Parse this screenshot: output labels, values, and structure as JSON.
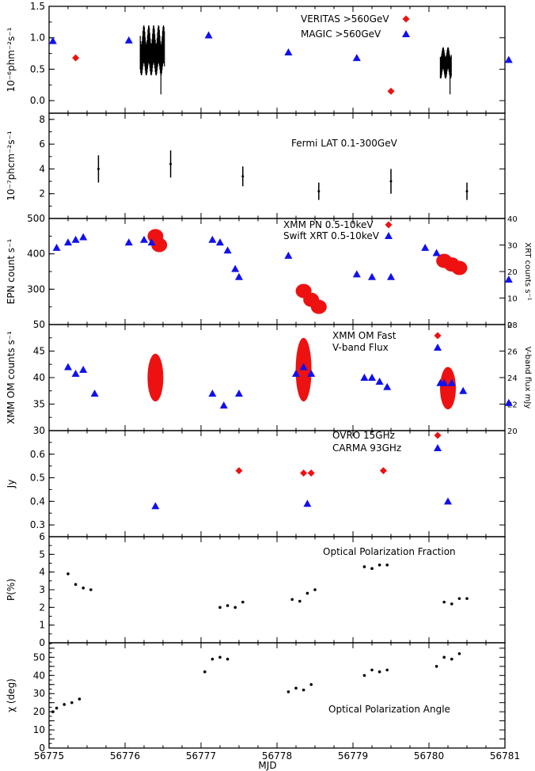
{
  "chart_data": [
    {
      "type": "scatter",
      "ylabel": "10⁻⁶phm⁻²s⁻¹",
      "ylim": [
        -0.2,
        1.5
      ],
      "yticks": [
        0.0,
        0.5,
        1.0,
        1.5
      ],
      "ytick_labels": [
        "0.0",
        "0.5",
        "1.0",
        "1.5"
      ],
      "series": [
        {
          "name": "VERITAS >560GeV",
          "color": "#ee1111",
          "marker": "diamond",
          "x": [
            56775.35,
            56776.35,
            56776.45,
            56779.5,
            56780.25
          ],
          "y": [
            0.68,
            0.72,
            0.73,
            0.15,
            0.57
          ]
        },
        {
          "name": "MAGIC >560GeV",
          "color": "#1111ee",
          "marker": "triangle",
          "x": [
            56775.05,
            56776.05,
            56777.1,
            56778.15,
            56779.05,
            56781.05
          ],
          "y": [
            0.95,
            0.96,
            1.04,
            0.77,
            0.68,
            0.65
          ]
        },
        {
          "name": "",
          "color": "#000000",
          "marker": "errband",
          "bands": [
            {
              "x0": 56776.2,
              "x1": 56776.52,
              "ymin": 0.4,
              "ymax": 1.2,
              "center": 0.72
            },
            {
              "x0": 56780.15,
              "x1": 56780.3,
              "ymin": 0.35,
              "ymax": 0.85,
              "center": 0.6
            }
          ]
        }
      ]
    },
    {
      "type": "scatter",
      "title": "Fermi LAT 0.1-300GeV",
      "ylabel": "10⁻⁷phcm⁻²s⁻¹",
      "ylim": [
        0,
        8.5
      ],
      "yticks": [
        2,
        4,
        6,
        8
      ],
      "ytick_labels": [
        "2",
        "4",
        "6",
        "8"
      ],
      "series": [
        {
          "name": "",
          "color": "#000000",
          "marker": "errbar",
          "x": [
            56775.65,
            56776.6,
            56777.55,
            56778.55,
            56779.5,
            56780.5
          ],
          "y": [
            4.0,
            4.4,
            3.4,
            2.2,
            3.0,
            2.2
          ],
          "err": [
            1.1,
            1.1,
            0.8,
            0.7,
            1.0,
            0.7
          ]
        }
      ]
    },
    {
      "type": "scatter",
      "ylabel": "EPN count s⁻¹",
      "y2label": "XRT counts s⁻¹",
      "ylim": [
        200,
        500
      ],
      "yticks": [
        200,
        300,
        400,
        500
      ],
      "ytick_labels": [
        "",
        "300",
        "400",
        "500"
      ],
      "y2lim": [
        0,
        40
      ],
      "y2ticks": [
        0,
        10,
        20,
        30,
        40
      ],
      "y2tick_labels": [
        "0",
        "10",
        "20",
        "30",
        "40"
      ],
      "series": [
        {
          "name": "XMM PN 0.5-10keV",
          "color": "#ee1111",
          "marker": "blob",
          "x": [
            56776.4,
            56776.45,
            56778.35,
            56778.45,
            56778.55,
            56780.2,
            56780.3,
            56780.4
          ],
          "y": [
            450,
            425,
            295,
            270,
            250,
            380,
            370,
            360
          ]
        },
        {
          "name": "Swift XRT 0.5-10keV",
          "color": "#1111ee",
          "marker": "triangle",
          "x": [
            56775.1,
            56775.25,
            56775.35,
            56775.45,
            56776.05,
            56776.25,
            56776.35,
            56777.15,
            56777.25,
            56777.35,
            56777.45,
            56777.5,
            56778.15,
            56779.05,
            56779.25,
            56779.5,
            56779.95,
            56780.1,
            56781.05
          ],
          "y": [
            29,
            31,
            32,
            33,
            31,
            32,
            31,
            32,
            31,
            28,
            21,
            18,
            26,
            19,
            18,
            18,
            29,
            27,
            17
          ]
        }
      ]
    },
    {
      "type": "scatter",
      "ylabel": "XMM OM counts s⁻¹",
      "y2label": "V-band flux mJy",
      "ylim": [
        30,
        50
      ],
      "yticks": [
        30,
        35,
        40,
        45,
        50
      ],
      "ytick_labels": [
        "30",
        "35",
        "40",
        "45",
        "50"
      ],
      "y2lim": [
        20,
        28
      ],
      "y2ticks": [
        20,
        22,
        24,
        26,
        28
      ],
      "y2tick_labels": [
        "20",
        "22",
        "24",
        "26",
        "28"
      ],
      "series": [
        {
          "name": "XMM OM Fast",
          "color": "#ee1111",
          "marker": "blob",
          "x": [
            56776.4,
            56778.35,
            56780.25
          ],
          "y": [
            40,
            41.5,
            38
          ],
          "spread": [
            4.5,
            6,
            4
          ]
        },
        {
          "name": "V-band Flux",
          "color": "#1111ee",
          "marker": "triangle",
          "x": [
            56775.25,
            56775.35,
            56775.45,
            56775.6,
            56777.15,
            56777.3,
            56777.5,
            56778.25,
            56778.35,
            56778.45,
            56779.15,
            56779.25,
            56779.35,
            56779.45,
            56780.15,
            56780.2,
            56780.3,
            56780.45,
            56781.05
          ],
          "y": [
            24.8,
            24.3,
            24.6,
            22.8,
            22.8,
            21.9,
            22.8,
            24.3,
            24.8,
            24.3,
            24,
            24,
            23.7,
            23.3,
            23.6,
            23.6,
            23.6,
            23,
            22.1
          ]
        }
      ]
    },
    {
      "type": "scatter",
      "ylabel": "Jy",
      "ylim": [
        0.25,
        0.7
      ],
      "yticks": [
        0.3,
        0.4,
        0.5,
        0.6
      ],
      "ytick_labels": [
        "0.3",
        "0.4",
        "0.5",
        "0.6"
      ],
      "series": [
        {
          "name": "OVRO 15GHz",
          "color": "#ee1111",
          "marker": "diamond",
          "x": [
            56777.5,
            56778.35,
            56778.45,
            56779.4
          ],
          "y": [
            0.53,
            0.52,
            0.52,
            0.53
          ]
        },
        {
          "name": "CARMA 93GHz",
          "color": "#1111ee",
          "marker": "triangle",
          "x": [
            56776.4,
            56778.4,
            56780.25
          ],
          "y": [
            0.38,
            0.39,
            0.4
          ]
        }
      ]
    },
    {
      "type": "scatter",
      "title": "Optical Polarization Fraction",
      "ylabel": "P(%)",
      "ylim": [
        0,
        6
      ],
      "yticks": [
        0,
        1,
        2,
        3,
        4,
        5,
        6
      ],
      "ytick_labels": [
        "0",
        "1",
        "2",
        "3",
        "4",
        "5",
        "6"
      ],
      "series": [
        {
          "name": "",
          "color": "#000000",
          "marker": "dot",
          "x": [
            56775.25,
            56775.35,
            56775.45,
            56775.55,
            56777.25,
            56777.35,
            56777.45,
            56777.55,
            56778.2,
            56778.3,
            56778.4,
            56778.5,
            56779.15,
            56779.25,
            56779.35,
            56779.45,
            56780.2,
            56780.3,
            56780.4,
            56780.5
          ],
          "y": [
            3.9,
            3.3,
            3.1,
            3.0,
            2.0,
            2.1,
            2.0,
            2.3,
            2.45,
            2.35,
            2.8,
            3.0,
            4.3,
            4.2,
            4.4,
            4.4,
            2.3,
            2.2,
            2.5,
            2.5
          ]
        }
      ]
    },
    {
      "type": "scatter",
      "title": "Optical Polarization Angle",
      "ylabel": "χ (deg)",
      "xlabel": "MJD",
      "ylim": [
        0,
        58
      ],
      "yticks": [
        0,
        5,
        10,
        15,
        20,
        25,
        30,
        35,
        40,
        45,
        50,
        55
      ],
      "ytick_labels": [
        "0",
        "",
        "10",
        "",
        "20",
        "",
        "30",
        "",
        "40",
        "",
        "50",
        ""
      ],
      "xlim": [
        56775,
        56781
      ],
      "xticks": [
        56775,
        56776,
        56777,
        56778,
        56779,
        56780,
        56781
      ],
      "xtick_labels": [
        "56775",
        "56776",
        "56777",
        "56778",
        "56779",
        "56780",
        "56781"
      ],
      "series": [
        {
          "name": "",
          "color": "#000000",
          "marker": "dot",
          "x": [
            56775.05,
            56775.1,
            56775.2,
            56775.3,
            56775.4,
            56777.05,
            56777.15,
            56777.25,
            56777.35,
            56778.15,
            56778.25,
            56778.35,
            56778.45,
            56779.15,
            56779.25,
            56779.35,
            56779.45,
            56780.1,
            56780.2,
            56780.3,
            56780.4
          ],
          "y": [
            20,
            22,
            24,
            25,
            27,
            42,
            49,
            50,
            49,
            31,
            33,
            32,
            35,
            40,
            43,
            42,
            43,
            45,
            50,
            49,
            52
          ]
        }
      ]
    }
  ]
}
